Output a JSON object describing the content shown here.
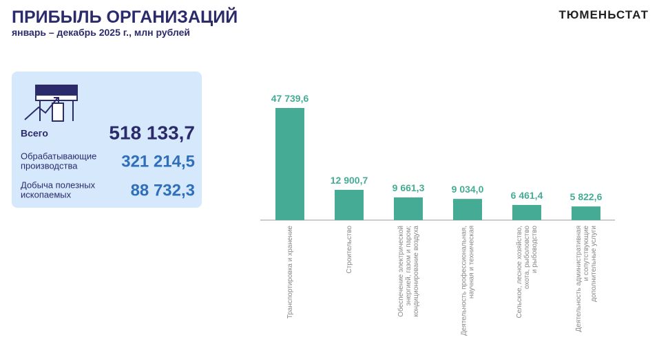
{
  "header": {
    "title": "ПРИБЫЛЬ ОРГАНИЗАЦИЙ",
    "subtitle": "январь – декабрь 2025 г., млн рублей",
    "brand": "ТЮМЕНЬСТАТ"
  },
  "summary": [
    {
      "label": [
        "Всего"
      ],
      "value": "518 133,7"
    },
    {
      "label": [
        "Обрабатывающие",
        "производства"
      ],
      "value": "321 214,5"
    },
    {
      "label": [
        "Добыча полезных",
        "ископаемых"
      ],
      "value": "88 732,3"
    }
  ],
  "chart_data": {
    "type": "bar",
    "color": "#45ab94",
    "categories": [
      [
        "Транспортировка и хранение"
      ],
      [
        "Строительство"
      ],
      [
        "Обеспечение электрической",
        "энергией, газом и паром;",
        "кондиционирование воздуха"
      ],
      [
        "Деятельность профессиональная,",
        "научная и техническая"
      ],
      [
        "Сельское, лесное хозяйство,",
        "охота, рыболовство",
        "и рыбоводство"
      ],
      [
        "Деятельность административная",
        "и сопутствующие",
        "дополнительные услуги"
      ]
    ],
    "values": [
      47739.6,
      12900.7,
      9661.3,
      9034.0,
      6461.4,
      5822.6
    ],
    "value_labels": [
      "47 739,6",
      "12 900,7",
      "9 661,3",
      "9 034,0",
      "6 461,4",
      "5 822,6"
    ]
  }
}
